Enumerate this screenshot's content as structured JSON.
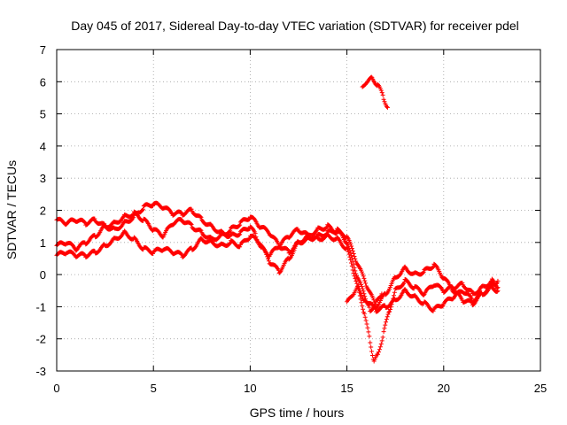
{
  "chart_data": {
    "type": "scatter",
    "title": "Day 045 of 2017, Sidereal Day-to-day VTEC variation (SDTVAR) for receiver pdel",
    "xlabel": "GPS time / hours",
    "ylabel": "SDTVAR / TECUs",
    "xlim": [
      0,
      25
    ],
    "ylim": [
      -3,
      7
    ],
    "xticks": [
      0,
      5,
      10,
      15,
      20,
      25
    ],
    "yticks": [
      -3,
      -2,
      -1,
      0,
      1,
      2,
      3,
      4,
      5,
      6,
      7
    ],
    "grid": true,
    "marker": "+",
    "series_color": "#ff0000",
    "series": [
      {
        "name": "track-a",
        "points": [
          [
            0,
            1.7
          ],
          [
            0.5,
            1.6
          ],
          [
            1,
            1.7
          ],
          [
            1.5,
            1.6
          ],
          [
            2,
            1.7
          ],
          [
            2.5,
            1.5
          ],
          [
            3,
            1.4
          ],
          [
            3.5,
            1.6
          ],
          [
            4,
            1.8
          ],
          [
            4.5,
            2.1
          ],
          [
            5,
            2.2
          ],
          [
            5.5,
            2.1
          ],
          [
            6,
            1.9
          ],
          [
            6.5,
            1.9
          ],
          [
            7,
            2.0
          ],
          [
            7.5,
            1.7
          ],
          [
            8,
            1.5
          ],
          [
            8.5,
            1.3
          ],
          [
            9,
            1.2
          ],
          [
            9.5,
            1.3
          ],
          [
            10,
            1.5
          ],
          [
            10.3,
            1.2
          ],
          [
            10.6,
            0.8
          ],
          [
            11,
            0.6
          ],
          [
            11.5,
            0.9
          ],
          [
            12,
            1.2
          ],
          [
            12.5,
            1.4
          ],
          [
            13,
            1.2
          ],
          [
            13.5,
            1.1
          ],
          [
            14,
            1.2
          ],
          [
            14.5,
            1.1
          ],
          [
            15,
            0.8
          ],
          [
            15.3,
            0.2
          ],
          [
            15.6,
            -0.5
          ],
          [
            15.9,
            -1.2
          ],
          [
            16.2,
            -2.1
          ],
          [
            16.4,
            -2.7
          ],
          [
            16.6,
            -2.5
          ],
          [
            16.9,
            -1.8
          ],
          [
            17.2,
            -1.1
          ],
          [
            17.5,
            -0.5
          ],
          [
            18,
            -0.2
          ],
          [
            18.5,
            -0.4
          ],
          [
            19,
            -0.6
          ],
          [
            19.5,
            -0.3
          ],
          [
            20,
            -0.5
          ],
          [
            20.5,
            -0.4
          ],
          [
            21,
            -0.3
          ],
          [
            21.5,
            -0.6
          ],
          [
            22,
            -0.4
          ],
          [
            22.5,
            -0.2
          ],
          [
            22.8,
            -0.4
          ]
        ]
      },
      {
        "name": "track-b",
        "points": [
          [
            0,
            0.9
          ],
          [
            0.5,
            1.0
          ],
          [
            1,
            0.8
          ],
          [
            1.5,
            1.0
          ],
          [
            2,
            1.2
          ],
          [
            2.5,
            1.5
          ],
          [
            3,
            1.6
          ],
          [
            3.5,
            1.8
          ],
          [
            4,
            1.9
          ],
          [
            4.5,
            1.7
          ],
          [
            5,
            1.4
          ],
          [
            5.5,
            1.2
          ],
          [
            6,
            1.6
          ],
          [
            6.5,
            1.7
          ],
          [
            7,
            1.5
          ],
          [
            7.5,
            1.3
          ],
          [
            8,
            1.1
          ],
          [
            8.5,
            1.2
          ],
          [
            9,
            1.4
          ],
          [
            9.5,
            1.6
          ],
          [
            10,
            1.8
          ],
          [
            10.5,
            1.5
          ],
          [
            11,
            1.3
          ],
          [
            11.5,
            0.9
          ],
          [
            12,
            0.7
          ],
          [
            12.5,
            1.0
          ],
          [
            13,
            1.2
          ],
          [
            13.5,
            1.4
          ],
          [
            14,
            1.5
          ],
          [
            14.5,
            1.3
          ],
          [
            15,
            1.2
          ],
          [
            15.5,
            0.4
          ],
          [
            16,
            -0.3
          ],
          [
            16.5,
            -1.0
          ],
          [
            17,
            -0.6
          ],
          [
            17.5,
            -0.1
          ],
          [
            18,
            0.2
          ],
          [
            18.5,
            0.0
          ],
          [
            19,
            0.1
          ],
          [
            19.5,
            0.3
          ],
          [
            20,
            -0.1
          ],
          [
            20.5,
            -0.5
          ],
          [
            21,
            -0.8
          ],
          [
            21.5,
            -0.9
          ],
          [
            22,
            -0.6
          ],
          [
            22.5,
            -0.3
          ],
          [
            22.8,
            -0.2
          ]
        ]
      },
      {
        "name": "track-c",
        "points": [
          [
            0,
            0.6
          ],
          [
            0.5,
            0.7
          ],
          [
            1,
            0.6
          ],
          [
            1.5,
            0.6
          ],
          [
            2,
            0.7
          ],
          [
            2.5,
            0.9
          ],
          [
            3,
            1.1
          ],
          [
            3.5,
            1.3
          ],
          [
            4,
            1.1
          ],
          [
            4.5,
            0.8
          ],
          [
            5,
            0.7
          ],
          [
            5.5,
            0.8
          ],
          [
            6,
            0.7
          ],
          [
            6.5,
            0.6
          ],
          [
            7,
            0.8
          ],
          [
            7.5,
            1.1
          ],
          [
            8,
            1.0
          ],
          [
            8.5,
            0.9
          ],
          [
            9,
            1.0
          ],
          [
            9.5,
            0.9
          ],
          [
            10,
            1.2
          ],
          [
            10.5,
            1.0
          ],
          [
            11,
            0.4
          ],
          [
            11.5,
            0.1
          ],
          [
            12,
            0.5
          ],
          [
            12.5,
            1.0
          ],
          [
            13,
            1.1
          ],
          [
            13.5,
            1.2
          ],
          [
            14,
            1.3
          ],
          [
            14.5,
            1.4
          ],
          [
            15,
            1.0
          ],
          [
            15.5,
            0.0
          ],
          [
            16,
            -0.8
          ],
          [
            16.5,
            -1.1
          ],
          [
            17,
            -1.0
          ],
          [
            17.5,
            -0.8
          ],
          [
            18,
            -0.5
          ],
          [
            18.5,
            -0.7
          ],
          [
            19,
            -0.9
          ],
          [
            19.5,
            -1.1
          ],
          [
            20,
            -0.9
          ],
          [
            20.5,
            -0.7
          ],
          [
            21,
            -0.5
          ],
          [
            21.5,
            -0.8
          ],
          [
            22,
            -0.6
          ],
          [
            22.5,
            -0.4
          ],
          [
            22.8,
            -0.5
          ]
        ]
      },
      {
        "name": "track-d",
        "points": [
          [
            15,
            -0.9
          ],
          [
            15.3,
            -0.6
          ],
          [
            15.6,
            -0.4
          ],
          [
            15.9,
            -0.8
          ],
          [
            16.2,
            -1.1
          ],
          [
            16.5,
            -0.9
          ],
          [
            16.8,
            -0.6
          ]
        ]
      },
      {
        "name": "track-e",
        "points": [
          [
            15.8,
            5.8
          ],
          [
            16.0,
            6.0
          ],
          [
            16.3,
            6.1
          ],
          [
            16.6,
            5.9
          ],
          [
            16.9,
            5.5
          ],
          [
            17.1,
            5.2
          ]
        ]
      }
    ]
  }
}
